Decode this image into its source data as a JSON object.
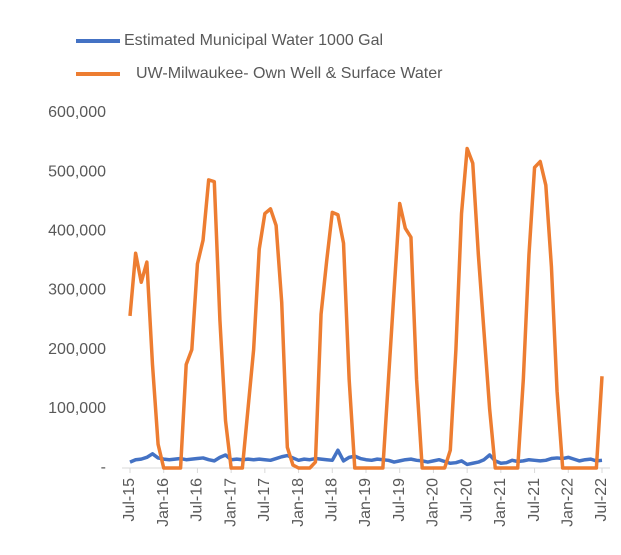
{
  "chart_data": {
    "type": "line",
    "categories": [
      "Jul-15",
      null,
      null,
      null,
      null,
      null,
      "Jan-16",
      null,
      null,
      null,
      null,
      null,
      "Jul-16",
      null,
      null,
      null,
      null,
      null,
      "Jan-17",
      null,
      null,
      null,
      null,
      null,
      "Jul-17",
      null,
      null,
      null,
      null,
      null,
      "Jan-18",
      null,
      null,
      null,
      null,
      null,
      "Jul-18",
      null,
      null,
      null,
      null,
      null,
      "Jan-19",
      null,
      null,
      null,
      null,
      null,
      "Jul-19",
      null,
      null,
      null,
      null,
      null,
      "Jan-20",
      null,
      null,
      null,
      null,
      null,
      "Jul-20",
      null,
      null,
      null,
      null,
      null,
      "Jan-21",
      null,
      null,
      null,
      null,
      null,
      "Jul-21",
      null,
      null,
      null,
      null,
      null,
      "Jan-22",
      null,
      null,
      null,
      null,
      null,
      "Jul-22"
    ],
    "series": [
      {
        "name": "Estimated Municipal Water 1000 Gal",
        "color": "#4472c4",
        "values": [
          10000,
          14000,
          15000,
          18000,
          24000,
          17000,
          15000,
          14000,
          15000,
          16000,
          14000,
          15000,
          16000,
          17000,
          14000,
          12000,
          18000,
          22000,
          14000,
          15000,
          14000,
          15000,
          14000,
          15000,
          14000,
          13000,
          16000,
          19000,
          21000,
          17000,
          13000,
          15000,
          14000,
          16000,
          15000,
          14000,
          13000,
          30000,
          12000,
          18000,
          20000,
          16000,
          14000,
          13000,
          15000,
          14000,
          13000,
          10000,
          12000,
          14000,
          15000,
          13000,
          12000,
          10000,
          12000,
          14000,
          11000,
          8000,
          9000,
          12000,
          6000,
          8000,
          10000,
          14000,
          22000,
          12000,
          8000,
          9000,
          13000,
          11000,
          12000,
          14000,
          13000,
          12000,
          13000,
          16000,
          17000,
          16000,
          18000,
          15000,
          12000,
          14000,
          15000,
          12000,
          13000
        ]
      },
      {
        "name": "UW-Milwaukee- Own Well & Surface Water",
        "color": "#ed7d31",
        "values": [
          257000,
          363000,
          314000,
          348000,
          175000,
          40000,
          0,
          0,
          0,
          0,
          175000,
          200000,
          345000,
          385000,
          487000,
          484000,
          250000,
          80000,
          0,
          0,
          0,
          100000,
          200000,
          370000,
          430000,
          438000,
          410000,
          280000,
          35000,
          5000,
          0,
          0,
          0,
          10000,
          260000,
          350000,
          432000,
          428000,
          380000,
          150000,
          0,
          0,
          0,
          0,
          0,
          0,
          150000,
          300000,
          447000,
          405000,
          390000,
          150000,
          0,
          0,
          0,
          0,
          0,
          30000,
          200000,
          430000,
          540000,
          515000,
          360000,
          230000,
          100000,
          0,
          0,
          0,
          0,
          0,
          150000,
          360000,
          508000,
          518000,
          478000,
          340000,
          130000,
          0,
          0,
          0,
          0,
          0,
          0,
          0,
          155000
        ]
      }
    ],
    "ylim": [
      0,
      600000
    ],
    "yticks": [
      {
        "value": 0,
        "label": "-"
      },
      {
        "value": 100000,
        "label": "100,000"
      },
      {
        "value": 200000,
        "label": "200,000"
      },
      {
        "value": 300000,
        "label": "300,000"
      },
      {
        "value": 400000,
        "label": "400,000"
      },
      {
        "value": 500000,
        "label": "500,000"
      },
      {
        "value": 600000,
        "label": "600,000"
      }
    ],
    "grid": false
  }
}
